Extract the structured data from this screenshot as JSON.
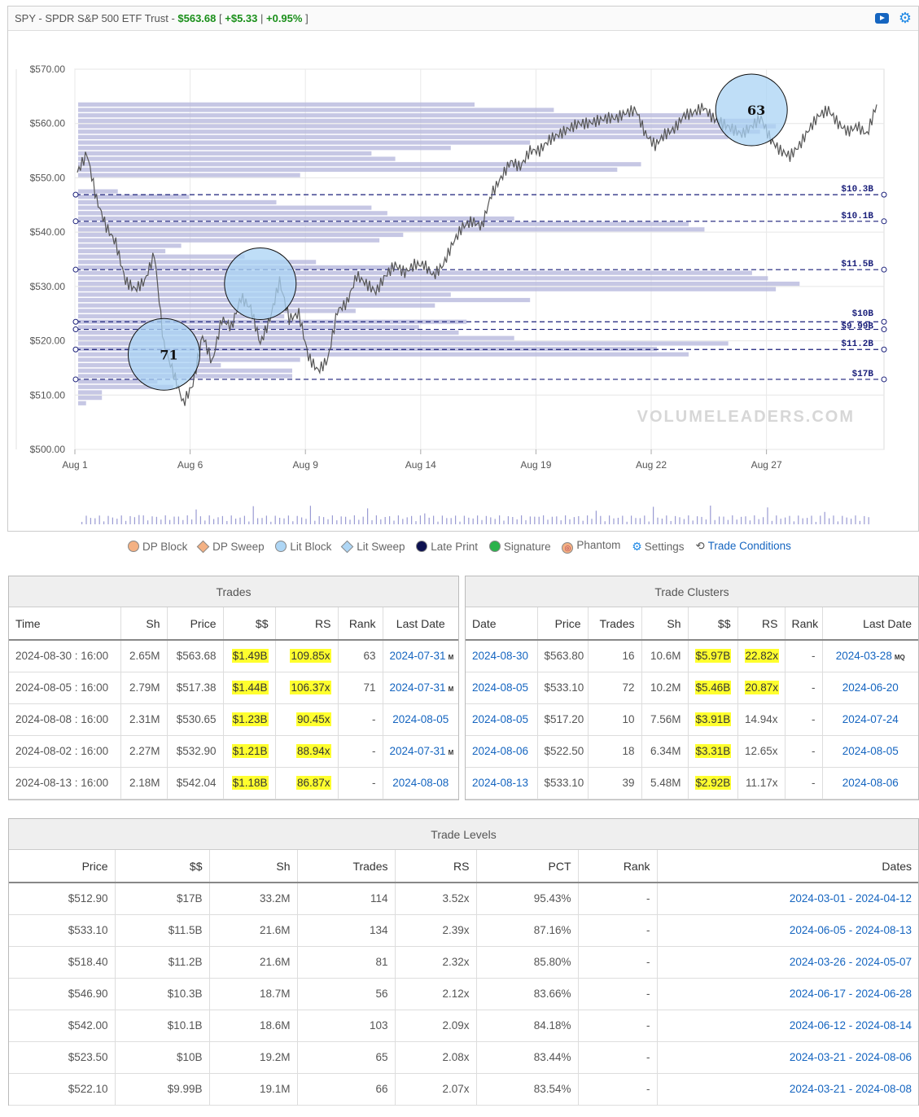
{
  "header": {
    "ticker_title": "SPY - SPDR S&P 500 ETF Trust",
    "price": "$563.68",
    "change": "+$5.33",
    "change_pct": "+0.95%",
    "accent_green": "#1a8f1a",
    "icons": [
      "video-icon",
      "gear-icon"
    ]
  },
  "chart_data": {
    "type": "line",
    "y_ticks": [
      "$570.00",
      "$560.00",
      "$550.00",
      "$540.00",
      "$530.00",
      "$520.00",
      "$510.00",
      "$500.00"
    ],
    "ylim": [
      500,
      570
    ],
    "x_ticks": [
      "Aug 1",
      "Aug 6",
      "Aug 9",
      "Aug 14",
      "Aug 19",
      "Aug 22",
      "Aug 27"
    ],
    "watermark": "VOLUMELEADERS.COM",
    "series": [
      {
        "values": [
          551,
          554.5,
          546,
          541,
          538,
          531,
          529.5,
          531,
          536,
          519,
          514,
          508.5,
          512,
          521,
          516,
          524,
          522.5,
          528,
          526,
          519.5,
          524,
          531,
          524,
          525,
          517,
          514.5,
          516.5,
          525.5,
          527,
          532,
          530.5,
          529,
          532,
          534,
          532.5,
          534,
          534,
          532,
          534,
          538,
          541,
          542,
          541,
          547,
          550,
          553,
          552,
          555,
          555,
          557,
          558,
          559,
          560,
          560,
          560.5,
          561,
          561,
          562,
          562.5,
          558,
          556,
          558,
          559,
          561.5,
          562,
          563,
          561,
          560,
          559,
          558,
          559.5,
          561,
          557,
          555,
          554,
          556,
          559,
          561.5,
          562.5,
          560,
          558.5,
          559.5,
          558,
          563.5
        ]
      }
    ],
    "levels": [
      {
        "price": 546.9,
        "label": "$10.3B"
      },
      {
        "price": 542.0,
        "label": "$10.1B"
      },
      {
        "price": 533.1,
        "label": "$11.5B"
      },
      {
        "price": 523.5,
        "label": "$10B"
      },
      {
        "price": 522.1,
        "label": "$9.99B"
      },
      {
        "price": 518.4,
        "label": "$11.2B"
      },
      {
        "price": 512.9,
        "label": "$17B"
      }
    ],
    "bubbles": [
      {
        "x": 9.0,
        "price": 517.5,
        "rank": "71"
      },
      {
        "x": 19.0,
        "price": 530.5,
        "rank": ""
      },
      {
        "x": 70.0,
        "price": 562.5,
        "rank": "63"
      }
    ],
    "volume_profile": [
      {
        "price": 563.5,
        "len": 0.5
      },
      {
        "price": 562.5,
        "len": 0.6
      },
      {
        "price": 561.5,
        "len": 0.8
      },
      {
        "price": 560.5,
        "len": 0.86
      },
      {
        "price": 559.5,
        "len": 0.88
      },
      {
        "price": 558.5,
        "len": 0.86
      },
      {
        "price": 557.5,
        "len": 0.82
      },
      {
        "price": 556.5,
        "len": 0.57
      },
      {
        "price": 555.5,
        "len": 0.47
      },
      {
        "price": 554.5,
        "len": 0.37
      },
      {
        "price": 553.5,
        "len": 0.4
      },
      {
        "price": 552.5,
        "len": 0.71
      },
      {
        "price": 551.5,
        "len": 0.68
      },
      {
        "price": 550.5,
        "len": 0.28
      },
      {
        "price": 547.5,
        "len": 0.05
      },
      {
        "price": 546.5,
        "len": 0.14
      },
      {
        "price": 545.5,
        "len": 0.25
      },
      {
        "price": 544.5,
        "len": 0.37
      },
      {
        "price": 543.5,
        "len": 0.39
      },
      {
        "price": 542.5,
        "len": 0.55
      },
      {
        "price": 541.5,
        "len": 0.77
      },
      {
        "price": 540.5,
        "len": 0.79
      },
      {
        "price": 539.5,
        "len": 0.41
      },
      {
        "price": 538.5,
        "len": 0.38
      },
      {
        "price": 537.5,
        "len": 0.13
      },
      {
        "price": 536.5,
        "len": 0.11
      },
      {
        "price": 535.5,
        "len": 0.21
      },
      {
        "price": 534.5,
        "len": 0.3
      },
      {
        "price": 533.5,
        "len": 0.4
      },
      {
        "price": 532.5,
        "len": 0.85
      },
      {
        "price": 531.5,
        "len": 0.87
      },
      {
        "price": 530.5,
        "len": 0.91
      },
      {
        "price": 529.5,
        "len": 0.88
      },
      {
        "price": 528.5,
        "len": 0.47
      },
      {
        "price": 527.5,
        "len": 0.57
      },
      {
        "price": 526.5,
        "len": 0.45
      },
      {
        "price": 525.5,
        "len": 0.35
      },
      {
        "price": 524.5,
        "len": 0.26
      },
      {
        "price": 523.5,
        "len": 0.49
      },
      {
        "price": 522.5,
        "len": 0.43
      },
      {
        "price": 521.5,
        "len": 0.48
      },
      {
        "price": 520.5,
        "len": 0.55
      },
      {
        "price": 519.5,
        "len": 0.82
      },
      {
        "price": 518.5,
        "len": 0.73
      },
      {
        "price": 517.5,
        "len": 0.77
      },
      {
        "price": 516.5,
        "len": 0.28
      },
      {
        "price": 515.5,
        "len": 0.18
      },
      {
        "price": 514.5,
        "len": 0.27
      },
      {
        "price": 513.5,
        "len": 0.27
      },
      {
        "price": 512.5,
        "len": 0.1
      },
      {
        "price": 511.5,
        "len": 0.12
      },
      {
        "price": 510.5,
        "len": 0.03
      },
      {
        "price": 509.5,
        "len": 0.03
      },
      {
        "price": 508.5,
        "len": 0.01
      }
    ]
  },
  "legend": [
    {
      "label": "DP Block",
      "shape": "circle",
      "color": "#f4b183"
    },
    {
      "label": "DP Sweep",
      "shape": "diamond",
      "color": "#f4b183"
    },
    {
      "label": "Lit Block",
      "shape": "circle",
      "color": "#aed6f5"
    },
    {
      "label": "Lit Sweep",
      "shape": "diamond",
      "color": "#aed6f5"
    },
    {
      "label": "Late Print",
      "shape": "circle",
      "color": "#0d1150"
    },
    {
      "label": "Signature",
      "shape": "circle",
      "color": "#2bb24c"
    },
    {
      "label": "Phantom",
      "shape": "circle",
      "color": "#f4b183"
    },
    {
      "label": "Settings",
      "shape": "gear"
    },
    {
      "label": "Trade Conditions",
      "shape": "link"
    }
  ],
  "trades": {
    "title": "Trades",
    "columns": [
      "Time",
      "Sh",
      "Price",
      "$$",
      "RS",
      "Rank",
      "Last Date"
    ],
    "rows": [
      {
        "time": "2024-08-30 : 16:00",
        "sh": "2.65M",
        "price": "$563.68",
        "dollars": "$1.49B",
        "rs": "109.85x",
        "rank": "63",
        "last_date": "2024-07-31",
        "tag": "M"
      },
      {
        "time": "2024-08-05 : 16:00",
        "sh": "2.79M",
        "price": "$517.38",
        "dollars": "$1.44B",
        "rs": "106.37x",
        "rank": "71",
        "last_date": "2024-07-31",
        "tag": "M"
      },
      {
        "time": "2024-08-08 : 16:00",
        "sh": "2.31M",
        "price": "$530.65",
        "dollars": "$1.23B",
        "rs": "90.45x",
        "rank": "-",
        "last_date": "2024-08-05",
        "tag": ""
      },
      {
        "time": "2024-08-02 : 16:00",
        "sh": "2.27M",
        "price": "$532.90",
        "dollars": "$1.21B",
        "rs": "88.94x",
        "rank": "-",
        "last_date": "2024-07-31",
        "tag": "M"
      },
      {
        "time": "2024-08-13 : 16:00",
        "sh": "2.18M",
        "price": "$542.04",
        "dollars": "$1.18B",
        "rs": "86.87x",
        "rank": "-",
        "last_date": "2024-08-08",
        "tag": ""
      }
    ]
  },
  "clusters": {
    "title": "Trade Clusters",
    "columns": [
      "Date",
      "Price",
      "Trades",
      "Sh",
      "$$",
      "RS",
      "Rank",
      "Last Date"
    ],
    "rows": [
      {
        "date": "2024-08-30",
        "price": "$563.80",
        "trades": "16",
        "sh": "10.6M",
        "dollars": "$5.97B",
        "rs": "22.82x",
        "rs_hl": true,
        "rank": "-",
        "last_date": "2024-03-28",
        "tag": "MQ"
      },
      {
        "date": "2024-08-05",
        "price": "$533.10",
        "trades": "72",
        "sh": "10.2M",
        "dollars": "$5.46B",
        "rs": "20.87x",
        "rs_hl": true,
        "rank": "-",
        "last_date": "2024-06-20",
        "tag": ""
      },
      {
        "date": "2024-08-05",
        "price": "$517.20",
        "trades": "10",
        "sh": "7.56M",
        "dollars": "$3.91B",
        "rs": "14.94x",
        "rs_hl": false,
        "rank": "-",
        "last_date": "2024-07-24",
        "tag": ""
      },
      {
        "date": "2024-08-06",
        "price": "$522.50",
        "trades": "18",
        "sh": "6.34M",
        "dollars": "$3.31B",
        "rs": "12.65x",
        "rs_hl": false,
        "rank": "-",
        "last_date": "2024-08-05",
        "tag": ""
      },
      {
        "date": "2024-08-13",
        "price": "$533.10",
        "trades": "39",
        "sh": "5.48M",
        "dollars": "$2.92B",
        "rs": "11.17x",
        "rs_hl": false,
        "rank": "-",
        "last_date": "2024-08-06",
        "tag": ""
      }
    ]
  },
  "levels_table": {
    "title": "Trade Levels",
    "columns": [
      "Price",
      "$$",
      "Sh",
      "Trades",
      "RS",
      "PCT",
      "Rank",
      "Dates"
    ],
    "rows": [
      {
        "price": "$512.90",
        "dollars": "$17B",
        "sh": "33.2M",
        "trades": "114",
        "rs": "3.52x",
        "pct": "95.43%",
        "rank": "-",
        "dates": "2024-03-01 - 2024-04-12"
      },
      {
        "price": "$533.10",
        "dollars": "$11.5B",
        "sh": "21.6M",
        "trades": "134",
        "rs": "2.39x",
        "pct": "87.16%",
        "rank": "-",
        "dates": "2024-06-05 - 2024-08-13"
      },
      {
        "price": "$518.40",
        "dollars": "$11.2B",
        "sh": "21.6M",
        "trades": "81",
        "rs": "2.32x",
        "pct": "85.80%",
        "rank": "-",
        "dates": "2024-03-26 - 2024-05-07"
      },
      {
        "price": "$546.90",
        "dollars": "$10.3B",
        "sh": "18.7M",
        "trades": "56",
        "rs": "2.12x",
        "pct": "83.66%",
        "rank": "-",
        "dates": "2024-06-17 - 2024-06-28"
      },
      {
        "price": "$542.00",
        "dollars": "$10.1B",
        "sh": "18.6M",
        "trades": "103",
        "rs": "2.09x",
        "pct": "84.18%",
        "rank": "-",
        "dates": "2024-06-12 - 2024-08-14"
      },
      {
        "price": "$523.50",
        "dollars": "$10B",
        "sh": "19.2M",
        "trades": "65",
        "rs": "2.08x",
        "pct": "83.44%",
        "rank": "-",
        "dates": "2024-03-21 - 2024-08-06"
      },
      {
        "price": "$522.10",
        "dollars": "$9.99B",
        "sh": "19.1M",
        "trades": "66",
        "rs": "2.07x",
        "pct": "83.54%",
        "rank": "-",
        "dates": "2024-03-21 - 2024-08-08"
      }
    ]
  }
}
